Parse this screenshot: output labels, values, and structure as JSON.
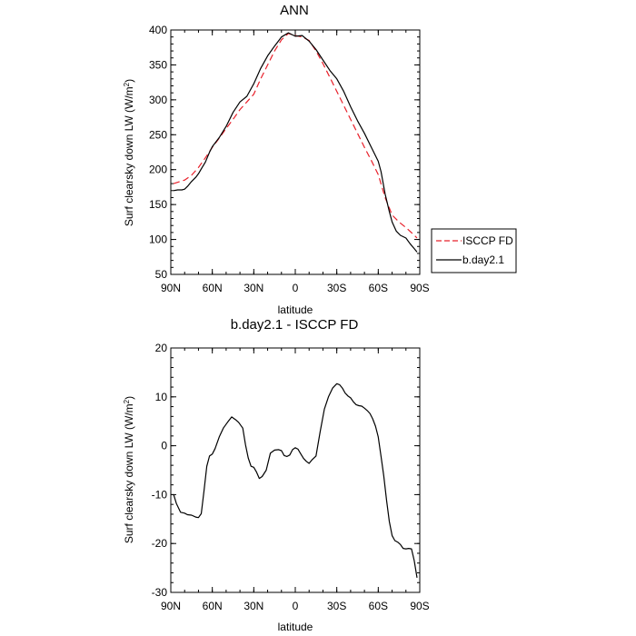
{
  "chart_data": [
    {
      "type": "line",
      "title": "ANN",
      "xlabel": "latitude",
      "ylabel": "Surf clearsky down LW (W/m²)",
      "ylabel_main": "Surf clearsky down LW (W/m",
      "ylabel_sup": "2",
      "ylabel_close": ")",
      "xlim": [
        90,
        -90
      ],
      "ylim": [
        50,
        400
      ],
      "xticks": [
        90,
        60,
        30,
        0,
        -30,
        -60,
        -90
      ],
      "xticklabels": [
        "90N",
        "60N",
        "30N",
        "0",
        "30S",
        "60S",
        "90S"
      ],
      "yticks": [
        50,
        100,
        150,
        200,
        250,
        300,
        350,
        400
      ],
      "yticklabels": [
        "50",
        "100",
        "150",
        "200",
        "250",
        "300",
        "350",
        "400"
      ],
      "legend": [
        "ISCCP FD",
        "b.day2.1"
      ],
      "series": [
        {
          "name": "ISCCP FD",
          "color": "#e8202a",
          "dash": "dashed",
          "x": [
            88,
            80,
            75,
            70,
            65,
            60,
            55,
            50,
            45,
            40,
            35,
            30,
            25,
            20,
            15,
            10,
            5,
            0,
            -5,
            -10,
            -15,
            -20,
            -25,
            -30,
            -35,
            -40,
            -45,
            -50,
            -55,
            -60,
            -65,
            -70,
            -75,
            -80,
            -85,
            -88
          ],
          "y": [
            180,
            185,
            192,
            203,
            217,
            232,
            245,
            259,
            272,
            286,
            297,
            308,
            330,
            350,
            370,
            386,
            395,
            392,
            390,
            385,
            370,
            352,
            332,
            312,
            292,
            272,
            252,
            232,
            213,
            193,
            160,
            135,
            125,
            117,
            108,
            102
          ]
        },
        {
          "name": "b.day2.1",
          "color": "#000000",
          "dash": "solid",
          "x": [
            88,
            85,
            82,
            80,
            78,
            75,
            72,
            70,
            68,
            65,
            62,
            60,
            55,
            50,
            45,
            40,
            35,
            30,
            25,
            20,
            15,
            10,
            5,
            0,
            -5,
            -10,
            -15,
            -20,
            -25,
            -30,
            -35,
            -40,
            -45,
            -50,
            -55,
            -60,
            -62,
            -65,
            -68,
            -70,
            -73,
            -76,
            -80,
            -83,
            -86,
            -88
          ],
          "y": [
            170,
            171,
            171,
            172,
            176,
            183,
            189,
            194,
            201,
            211,
            225,
            233,
            246,
            262,
            282,
            297,
            305,
            323,
            345,
            363,
            377,
            390,
            396,
            391,
            392,
            384,
            372,
            357,
            342,
            330,
            312,
            290,
            270,
            252,
            232,
            212,
            197,
            165,
            140,
            125,
            112,
            106,
            102,
            94,
            87,
            82
          ]
        }
      ]
    },
    {
      "type": "line",
      "title": "b.day2.1 - ISCCP FD",
      "xlabel": "latitude",
      "ylabel": "Surf clearsky down LW (W/m²)",
      "ylabel_main": "Surf clearsky down LW (W/m",
      "ylabel_sup": "2",
      "ylabel_close": ")",
      "xlim": [
        90,
        -90
      ],
      "ylim": [
        -30,
        20
      ],
      "xticks": [
        90,
        60,
        30,
        0,
        -30,
        -60,
        -90
      ],
      "xticklabels": [
        "90N",
        "60N",
        "30N",
        "0",
        "30S",
        "60S",
        "90S"
      ],
      "yticks": [
        -30,
        -20,
        -10,
        0,
        10,
        20
      ],
      "yticklabels": [
        "-30",
        "-20",
        "-10",
        "0",
        "10",
        "20"
      ],
      "series": [
        {
          "name": "b.day2.1 - ISCCP FD",
          "color": "#000000",
          "dash": "solid",
          "x": [
            88,
            86,
            83,
            80,
            78,
            75,
            72,
            70,
            68,
            66,
            64,
            62,
            60,
            58,
            55,
            52,
            49,
            46,
            43,
            41,
            38,
            36,
            34,
            32,
            30,
            28,
            26,
            24,
            21,
            18,
            15,
            12,
            10,
            8,
            6,
            4,
            2,
            0,
            -2,
            -4,
            -6,
            -8,
            -10,
            -12,
            -15,
            -18,
            -21,
            -24,
            -27,
            -30,
            -32,
            -34,
            -36,
            -38,
            -40,
            -42,
            -44,
            -46,
            -48,
            -50,
            -52,
            -54,
            -56,
            -58,
            -60,
            -62,
            -64,
            -66,
            -68,
            -70,
            -72,
            -74,
            -76,
            -78,
            -80,
            -82,
            -84,
            -86,
            -88
          ],
          "y": [
            -9.9,
            -11.8,
            -13.6,
            -13.8,
            -14.1,
            -14.2,
            -14.6,
            -14.7,
            -13.9,
            -9.3,
            -4.2,
            -2.1,
            -1.7,
            -0.6,
            1.8,
            3.6,
            4.8,
            5.9,
            5.3,
            4.8,
            3.6,
            0.2,
            -2.5,
            -4.2,
            -4.4,
            -5.4,
            -6.7,
            -6.3,
            -5.0,
            -1.5,
            -0.9,
            -0.8,
            -1.0,
            -2.0,
            -2.2,
            -1.9,
            -0.8,
            -0.4,
            -0.7,
            -1.7,
            -2.6,
            -3.2,
            -3.6,
            -2.9,
            -2.1,
            2.9,
            7.5,
            10.0,
            11.8,
            12.7,
            12.5,
            11.8,
            10.8,
            10.2,
            9.8,
            9.0,
            8.4,
            8.2,
            8.1,
            7.7,
            7.2,
            6.6,
            5.5,
            4.0,
            1.8,
            -2.2,
            -6.2,
            -11.2,
            -15.5,
            -18.4,
            -19.4,
            -19.7,
            -20.2,
            -21.0,
            -21.1,
            -21.0,
            -21.1,
            -23.5,
            -27.0
          ]
        }
      ]
    }
  ]
}
